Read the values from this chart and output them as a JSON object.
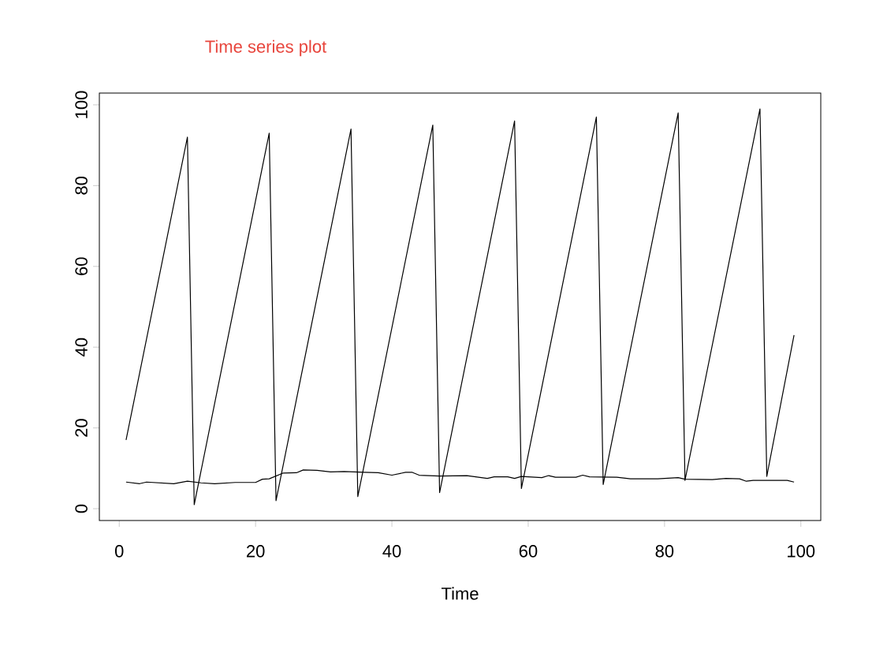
{
  "chart_data": {
    "type": "line",
    "title": "Time series plot",
    "xlabel": "Time",
    "xlim": [
      -2.92,
      102.92
    ],
    "ylim": [
      -2.92,
      102.92
    ],
    "xticks": [
      0,
      20,
      40,
      60,
      80,
      100
    ],
    "yticks": [
      0,
      20,
      40,
      60,
      80,
      100
    ],
    "series": [
      {
        "color": "#000000",
        "x": [
          1,
          10,
          11,
          22,
          23,
          34,
          35,
          46,
          47,
          58,
          59,
          70,
          71,
          82,
          83,
          94,
          95,
          99
        ],
        "values": [
          17,
          92,
          1,
          93,
          2,
          94,
          3,
          95,
          4,
          96,
          5,
          97,
          6,
          98,
          7,
          99,
          8,
          43
        ]
      },
      {
        "color": "#000000",
        "x": [
          1,
          3,
          4,
          8,
          10,
          12,
          14,
          17,
          20,
          21,
          22,
          24,
          26,
          27,
          29,
          31,
          33,
          36,
          38,
          40,
          42,
          43,
          44,
          47,
          51,
          54,
          55,
          57,
          58,
          59,
          62,
          63,
          64,
          67,
          68,
          69,
          73,
          75,
          79,
          82,
          83,
          87,
          89,
          91,
          92,
          93,
          98,
          99
        ],
        "values": [
          6.6,
          6.2,
          6.6,
          6.2,
          6.8,
          6.4,
          6.2,
          6.5,
          6.5,
          7.3,
          7.4,
          8.8,
          8.9,
          9.6,
          9.5,
          9.1,
          9.2,
          9.0,
          8.9,
          8.3,
          9.0,
          9.0,
          8.3,
          8.1,
          8.2,
          7.5,
          7.9,
          7.9,
          7.5,
          8.0,
          7.7,
          8.2,
          7.8,
          7.8,
          8.3,
          7.9,
          7.8,
          7.4,
          7.4,
          7.7,
          7.3,
          7.2,
          7.5,
          7.4,
          6.8,
          7.0,
          7.0,
          6.6
        ]
      }
    ]
  }
}
